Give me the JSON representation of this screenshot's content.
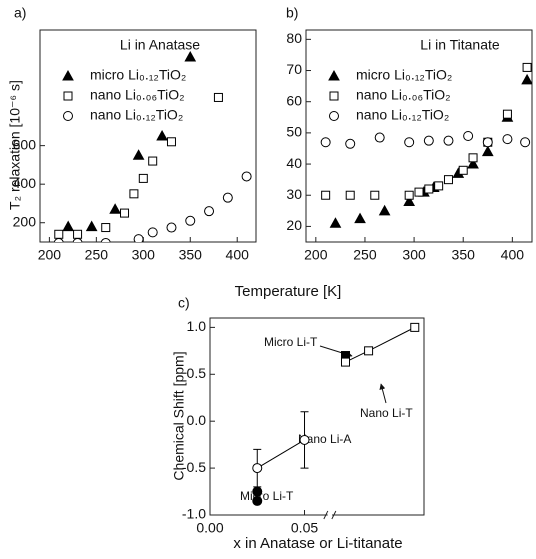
{
  "chart_data": [
    {
      "type": "scatter",
      "panel_label": "a)",
      "title": "Li in Anatase",
      "xlabel": "Temperature [K]",
      "ylabel": "T₂ relaxation [10⁻⁶ s]",
      "xlim": [
        190,
        420
      ],
      "xticks": [
        200,
        250,
        300,
        350,
        400
      ],
      "ylim": [
        100,
        1200
      ],
      "yticks": [
        200,
        400,
        600
      ],
      "legend": "upper left",
      "series": [
        {
          "name": "micro Li₀.₁₂TiO₂",
          "color": "#000000",
          "marker": "triangle",
          "filled": true,
          "x": [
            220,
            245,
            270,
            295,
            320,
            350
          ],
          "values": [
            180,
            180,
            270,
            550,
            650,
            1060
          ]
        },
        {
          "name": "nano Li₀.₀₆TiO₂",
          "color": "#000000",
          "marker": "square",
          "filled": false,
          "x": [
            210,
            230,
            260,
            280,
            290,
            300,
            310,
            330,
            380
          ],
          "values": [
            140,
            140,
            175,
            250,
            350,
            430,
            520,
            620,
            850
          ]
        },
        {
          "name": "nano Li₀.₁₂TiO₂",
          "color": "#000000",
          "marker": "circle",
          "filled": false,
          "x": [
            210,
            230,
            260,
            295,
            310,
            330,
            350,
            370,
            390,
            410
          ],
          "values": [
            95,
            95,
            95,
            115,
            150,
            175,
            210,
            260,
            330,
            440
          ]
        }
      ]
    },
    {
      "type": "scatter",
      "panel_label": "b)",
      "title": "Li in Titanate",
      "xlim": [
        190,
        420
      ],
      "xticks": [
        200,
        250,
        300,
        350,
        400
      ],
      "ylim": [
        15,
        83
      ],
      "yticks": [
        20,
        30,
        40,
        50,
        60,
        70,
        80
      ],
      "legend": "upper left",
      "series": [
        {
          "name": "micro Li₀.₁₂TiO₂",
          "color": "#000000",
          "marker": "triangle",
          "filled": true,
          "x": [
            220,
            245,
            270,
            295,
            310,
            320,
            345,
            360,
            375,
            395,
            415
          ],
          "values": [
            21,
            22.5,
            25,
            28,
            31,
            32.5,
            37,
            40,
            44,
            55,
            67
          ]
        },
        {
          "name": "nano Li₀.₀₆TiO₂",
          "color": "#000000",
          "marker": "square",
          "filled": false,
          "x": [
            210,
            235,
            260,
            295,
            305,
            315,
            325,
            335,
            350,
            360,
            375,
            395,
            415
          ],
          "values": [
            30,
            30,
            30,
            30,
            31,
            32,
            33,
            35,
            38,
            42,
            47,
            56,
            71
          ]
        },
        {
          "name": "nano Li₀.₁₂TiO₂",
          "color": "#000000",
          "marker": "circle",
          "filled": false,
          "x": [
            210,
            235,
            265,
            295,
            315,
            335,
            355,
            375,
            395,
            413
          ],
          "values": [
            47,
            46.5,
            48.5,
            47,
            47.5,
            47.5,
            49,
            47,
            48,
            47
          ]
        }
      ]
    },
    {
      "type": "scatter",
      "panel_label": "c)",
      "xlabel": "x in Anatase or Li-titanate",
      "ylabel": "Chemical Shift [ppm]",
      "xlim": [
        0,
        0.72
      ],
      "xbreak": [
        0.06,
        0.53
      ],
      "xticks": [
        {
          "value": 0,
          "label": "0.00"
        },
        {
          "value": 0.05,
          "label": "0.05"
        }
      ],
      "ylim": [
        -1.0,
        1.1
      ],
      "yticks": [
        {
          "value": -1,
          "label": "-1.0"
        },
        -0.5,
        {
          "value": 0,
          "label": "0.0"
        },
        0.5,
        {
          "value": 1,
          "label": "1.0"
        }
      ],
      "series": [
        {
          "name": "Nano Li-A",
          "color": "#000000",
          "marker": "circle",
          "filled": false,
          "line": true,
          "x": [
            0.025,
            0.05
          ],
          "values": [
            -0.5,
            -0.2
          ],
          "errors": [
            0.2,
            0.3
          ]
        },
        {
          "name": "Micro Li-T",
          "color": "#000000",
          "marker": "circle",
          "filled": true,
          "x": [
            0.025,
            0.025
          ],
          "values": [
            -0.75,
            -0.85
          ]
        },
        {
          "name": "Micro Li-T",
          "color": "#000000",
          "marker": "square",
          "filled": true,
          "x": [
            0.55
          ],
          "values": [
            0.7
          ]
        },
        {
          "name": "Nano Li-T",
          "color": "#000000",
          "marker": "square",
          "filled": false,
          "line": true,
          "x": [
            0.55,
            0.6,
            0.7
          ],
          "values": [
            0.63,
            0.75,
            1.0
          ]
        }
      ]
    }
  ]
}
